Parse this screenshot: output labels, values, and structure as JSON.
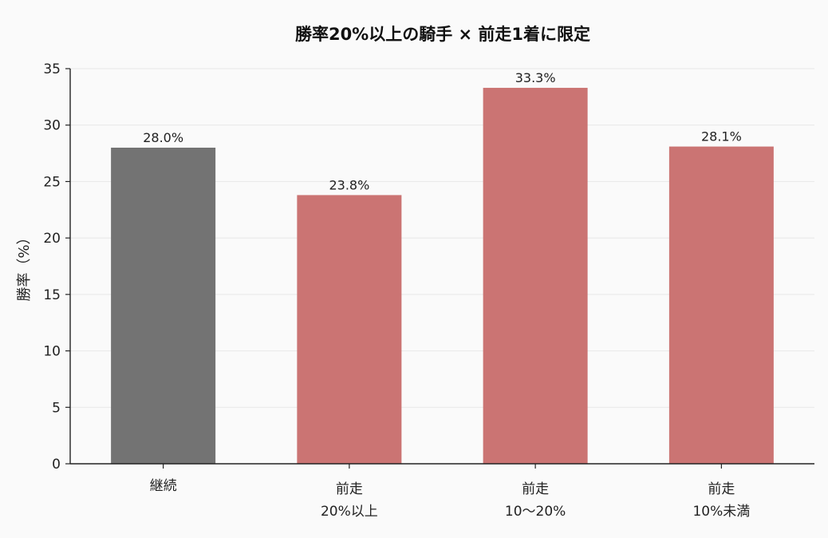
{
  "chart_data": {
    "type": "bar",
    "title": "勝率20%以上の騎手 × 前走1着に限定",
    "xlabel": "",
    "ylabel": "勝率（%）",
    "ylim": [
      0,
      35
    ],
    "yticks": [
      "0",
      "5",
      "10",
      "15",
      "20",
      "25",
      "30",
      "35"
    ],
    "grid": true,
    "categories": [
      [
        "継続"
      ],
      [
        "前走",
        "20%以上"
      ],
      [
        "前走",
        "10〜20%"
      ],
      [
        "前走",
        "10%未満"
      ]
    ],
    "values": [
      28.0,
      23.8,
      33.3,
      28.1
    ],
    "value_labels": [
      "28.0%",
      "23.8%",
      "33.3%",
      "28.1%"
    ],
    "colors": [
      "#737373",
      "#cb7473",
      "#cb7473",
      "#cb7473"
    ]
  }
}
